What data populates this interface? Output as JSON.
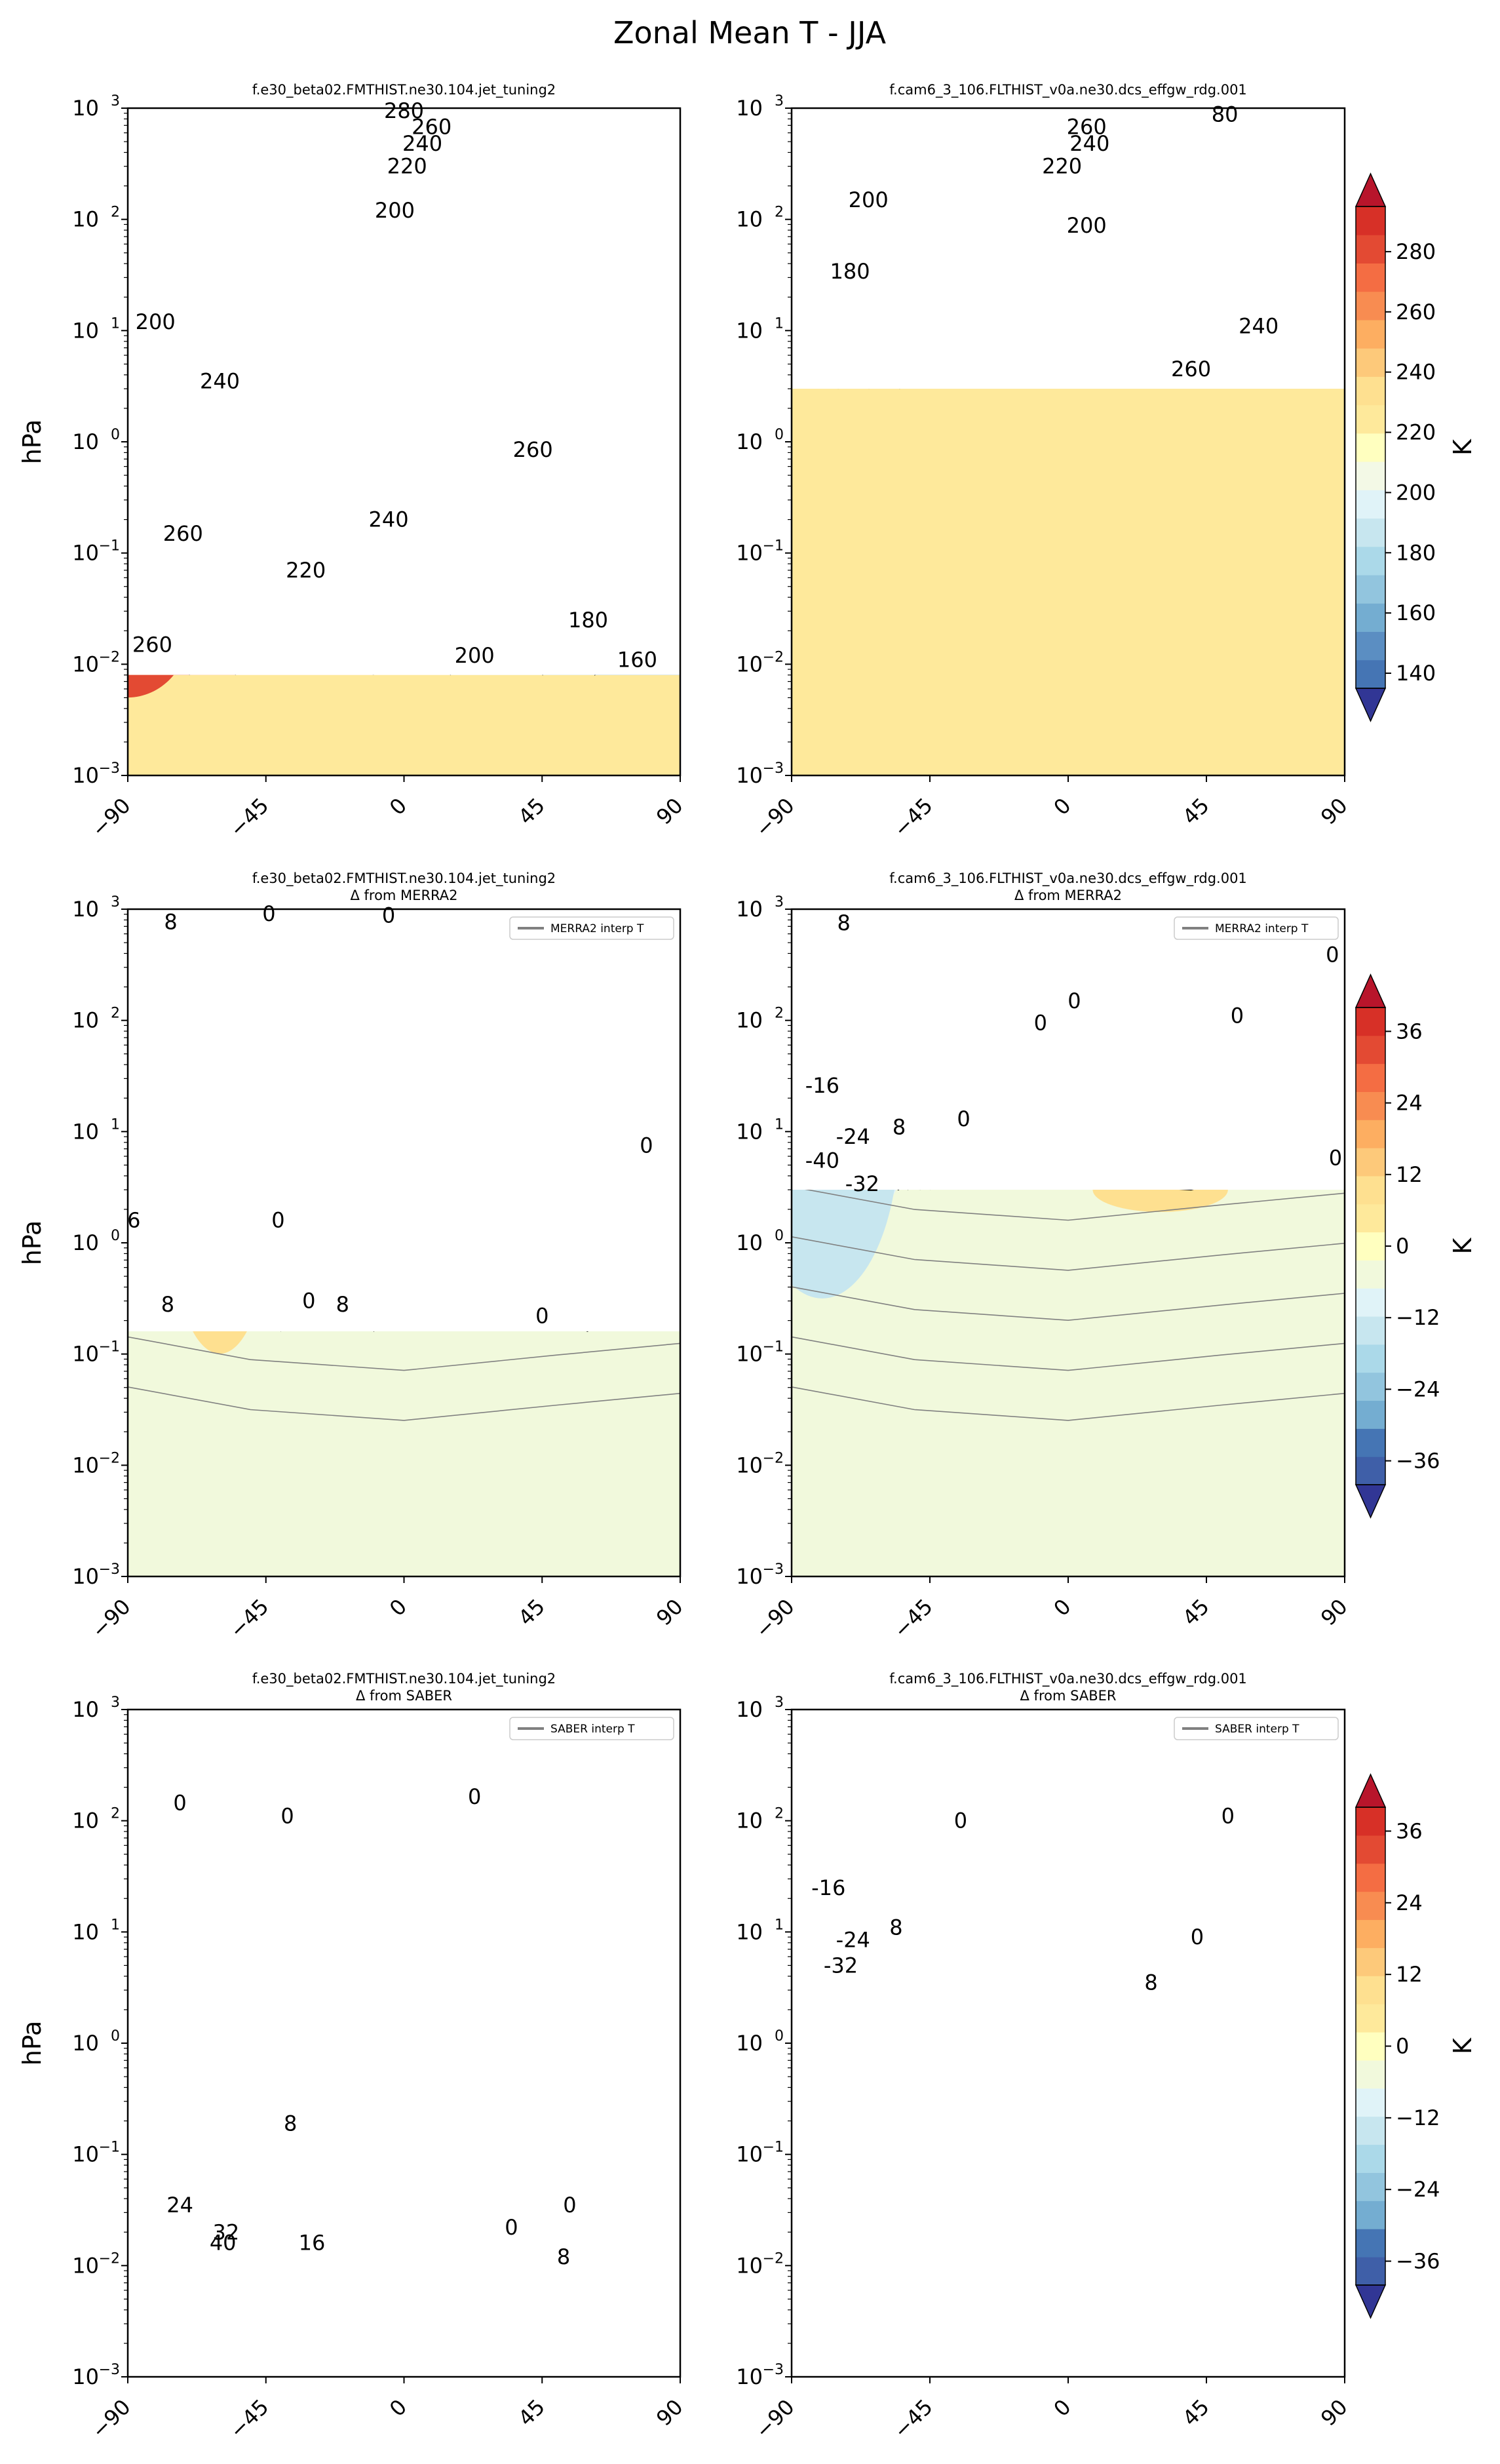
{
  "figure": {
    "title": "Zonal Mean T - JJA"
  },
  "colors": {
    "abs_levels": [
      "#313695",
      "#4575b4",
      "#5b8ec2",
      "#74add1",
      "#92c5de",
      "#abd9e9",
      "#c7e6ef",
      "#e0f3f8",
      "#f3f9e6",
      "#ffffbf",
      "#fee99b",
      "#fee090",
      "#fdc97a",
      "#fdae61",
      "#f88c51",
      "#f46d43",
      "#e34a33",
      "#d73027",
      "#b8152b"
    ],
    "diff_levels": [
      "#313695",
      "#3f5fa8",
      "#4575b4",
      "#74add1",
      "#92c5de",
      "#abd9e9",
      "#c7e6ef",
      "#e0f3f8",
      "#f1f9dc",
      "#ffffbf",
      "#fee99b",
      "#fee090",
      "#fdc97a",
      "#fdae61",
      "#f88c51",
      "#f46d43",
      "#e34a33",
      "#d73027",
      "#b8152b"
    ],
    "contour_positive": "#000000",
    "contour_reference": "#808080"
  },
  "chart_data": [
    {
      "type": "heatmap",
      "id": "p11",
      "title": "f.e30_beta02.FMTHIST.ne30.104.jet_tuning2",
      "subtitle": "",
      "xlabel": "",
      "ylabel": "hPa",
      "xlim": [
        -90,
        90
      ],
      "ylim": [
        1000,
        0.001
      ],
      "yscale": "log",
      "xticks": [
        -90,
        -45,
        0,
        45,
        90
      ],
      "data_top_hPa": 0.008,
      "data_lat": [
        -90,
        90
      ],
      "contour_labels": [
        {
          "lat": -82,
          "p": 0.015,
          "text": "260"
        },
        {
          "lat": -72,
          "p": 0.15,
          "text": "260"
        },
        {
          "lat": -32,
          "p": 0.07,
          "text": "220"
        },
        {
          "lat": -5,
          "p": 0.2,
          "text": "240"
        },
        {
          "lat": 23,
          "p": 0.012,
          "text": "200"
        },
        {
          "lat": 42,
          "p": 0.85,
          "text": "260"
        },
        {
          "lat": 60,
          "p": 0.025,
          "text": "180"
        },
        {
          "lat": 76,
          "p": 0.011,
          "text": "160"
        },
        {
          "lat": -60,
          "p": 3.5,
          "text": "240"
        },
        {
          "lat": -81,
          "p": 12,
          "text": "200"
        },
        {
          "lat": -3,
          "p": 120,
          "text": "200"
        },
        {
          "lat": 1,
          "p": 300,
          "text": "220"
        },
        {
          "lat": 6,
          "p": 480,
          "text": "240"
        },
        {
          "lat": 9,
          "p": 680,
          "text": "260"
        },
        {
          "lat": 0,
          "p": 950,
          "text": "280"
        }
      ]
    },
    {
      "type": "heatmap",
      "id": "p12",
      "title": "f.cam6_3_106.FLTHIST_v0a.ne30.dcs_effgw_rdg.001",
      "subtitle": "",
      "xlabel": "",
      "ylabel": "",
      "xlim": [
        -90,
        90
      ],
      "ylim": [
        1000,
        0.001
      ],
      "yscale": "log",
      "xticks": [
        -90,
        -45,
        0,
        45,
        90
      ],
      "data_top_hPa": 3.0,
      "data_lat": [
        -90,
        90
      ],
      "contour_labels": [
        {
          "lat": 40,
          "p": 4.5,
          "text": "260"
        },
        {
          "lat": 62,
          "p": 11,
          "text": "240"
        },
        {
          "lat": -71,
          "p": 34,
          "text": "180"
        },
        {
          "lat": -65,
          "p": 150,
          "text": "200"
        },
        {
          "lat": 6,
          "p": 88,
          "text": "200"
        },
        {
          "lat": -2,
          "p": 300,
          "text": "220"
        },
        {
          "lat": 7,
          "p": 480,
          "text": "240"
        },
        {
          "lat": 6,
          "p": 680,
          "text": "260"
        },
        {
          "lat": 51,
          "p": 880,
          "text": "80"
        }
      ]
    },
    {
      "type": "heatmap",
      "id": "p21",
      "title": "f.e30_beta02.FMTHIST.ne30.104.jet_tuning2",
      "subtitle": "Δ from MERRA2",
      "legend": "MERRA2 interp T",
      "xlabel": "",
      "ylabel": "hPa",
      "xlim": [
        -90,
        90
      ],
      "ylim": [
        1000,
        0.001
      ],
      "yscale": "log",
      "xticks": [
        -90,
        -45,
        0,
        45,
        90
      ],
      "data_top_hPa": 0.16,
      "data_lat": [
        -90,
        90
      ],
      "contour_labels": [
        {
          "lat": -77,
          "p": 0.28,
          "text": "8"
        },
        {
          "lat": -31,
          "p": 0.3,
          "text": "0"
        },
        {
          "lat": -20,
          "p": 0.28,
          "text": "8"
        },
        {
          "lat": 45,
          "p": 0.22,
          "text": "0"
        },
        {
          "lat": -88,
          "p": 1.6,
          "text": "6"
        },
        {
          "lat": -41,
          "p": 1.6,
          "text": "0"
        },
        {
          "lat": 79,
          "p": 7.5,
          "text": "0"
        },
        {
          "lat": -76,
          "p": 770,
          "text": "8"
        },
        {
          "lat": -44,
          "p": 910,
          "text": "0"
        },
        {
          "lat": -5,
          "p": 880,
          "text": "0"
        }
      ]
    },
    {
      "type": "heatmap",
      "id": "p22",
      "title": "f.cam6_3_106.FLTHIST_v0a.ne30.dcs_effgw_rdg.001",
      "subtitle": "Δ from MERRA2",
      "legend": "MERRA2 interp T",
      "xlabel": "",
      "ylabel": "",
      "xlim": [
        -90,
        90
      ],
      "ylim": [
        1000,
        0.001
      ],
      "yscale": "log",
      "xticks": [
        -90,
        -45,
        0,
        45,
        90
      ],
      "data_top_hPa": 3.0,
      "data_lat": [
        -90,
        90
      ],
      "contour_labels": [
        {
          "lat": -67,
          "p": 3.4,
          "text": "-32"
        },
        {
          "lat": -80,
          "p": 5.5,
          "text": "-40"
        },
        {
          "lat": -70,
          "p": 9,
          "text": "-24"
        },
        {
          "lat": -55,
          "p": 11,
          "text": "8"
        },
        {
          "lat": -34,
          "p": 13,
          "text": "0"
        },
        {
          "lat": 87,
          "p": 5.8,
          "text": "0"
        },
        {
          "lat": -80,
          "p": 26,
          "text": "-16"
        },
        {
          "lat": -9,
          "p": 95,
          "text": "0"
        },
        {
          "lat": 2,
          "p": 150,
          "text": "0"
        },
        {
          "lat": 55,
          "p": 110,
          "text": "0"
        },
        {
          "lat": 86,
          "p": 390,
          "text": "0"
        },
        {
          "lat": -73,
          "p": 750,
          "text": "8"
        }
      ]
    },
    {
      "type": "heatmap",
      "id": "p31",
      "title": "f.e30_beta02.FMTHIST.ne30.104.jet_tuning2",
      "subtitle": "Δ from SABER",
      "legend": "SABER interp T",
      "xlabel": "",
      "ylabel": "hPa",
      "xlim": [
        -90,
        90
      ],
      "ylim": [
        1000,
        0.001
      ],
      "yscale": "log",
      "xticks": [
        -90,
        -45,
        0,
        45,
        90
      ],
      "data_top_hPa": 0.008,
      "data_bottom_hPa": 120,
      "data_lat": [
        -79,
        79
      ],
      "contour_labels": [
        {
          "lat": -59,
          "p": 0.016,
          "text": "40"
        },
        {
          "lat": -58,
          "p": 0.02,
          "text": "32"
        },
        {
          "lat": -30,
          "p": 0.016,
          "text": "16"
        },
        {
          "lat": -73,
          "p": 0.035,
          "text": "24"
        },
        {
          "lat": 35,
          "p": 0.022,
          "text": "0"
        },
        {
          "lat": 52,
          "p": 0.012,
          "text": "8"
        },
        {
          "lat": 54,
          "p": 0.035,
          "text": "0"
        },
        {
          "lat": -37,
          "p": 0.19,
          "text": "8"
        },
        {
          "lat": -73,
          "p": 145,
          "text": "0"
        },
        {
          "lat": -38,
          "p": 110,
          "text": "0"
        },
        {
          "lat": 23,
          "p": 165,
          "text": "0"
        }
      ]
    },
    {
      "type": "heatmap",
      "id": "p32",
      "title": "f.cam6_3_106.FLTHIST_v0a.ne30.dcs_effgw_rdg.001",
      "subtitle": "Δ from SABER",
      "legend": "SABER interp T",
      "xlabel": "",
      "ylabel": "",
      "xlim": [
        -90,
        90
      ],
      "ylim": [
        1000,
        0.001
      ],
      "yscale": "log",
      "xticks": [
        -90,
        -45,
        0,
        45,
        90
      ],
      "data_top_hPa": 3.0,
      "data_bottom_hPa": 120,
      "data_lat": [
        -79,
        79
      ],
      "contour_labels": [
        {
          "lat": 27,
          "p": 3.5,
          "text": "8"
        },
        {
          "lat": -74,
          "p": 5,
          "text": "-32"
        },
        {
          "lat": -70,
          "p": 8.5,
          "text": "-24"
        },
        {
          "lat": -56,
          "p": 11,
          "text": "8"
        },
        {
          "lat": 42,
          "p": 9,
          "text": "0"
        },
        {
          "lat": -78,
          "p": 25,
          "text": "-16"
        },
        {
          "lat": -35,
          "p": 100,
          "text": "0"
        },
        {
          "lat": 52,
          "p": 110,
          "text": "0"
        }
      ]
    }
  ],
  "colorbars": [
    {
      "id": "cb_abs",
      "label": "K",
      "ticks": [
        140,
        160,
        180,
        200,
        220,
        240,
        260,
        280
      ],
      "range": [
        135,
        295
      ]
    },
    {
      "id": "cb_d1",
      "label": "K",
      "ticks": [
        -36,
        -24,
        -12,
        0,
        12,
        24,
        36
      ],
      "range": [
        -40,
        40
      ]
    },
    {
      "id": "cb_d2",
      "label": "K",
      "ticks": [
        -36,
        -24,
        -12,
        0,
        12,
        24,
        36
      ],
      "range": [
        -40,
        40
      ]
    }
  ]
}
